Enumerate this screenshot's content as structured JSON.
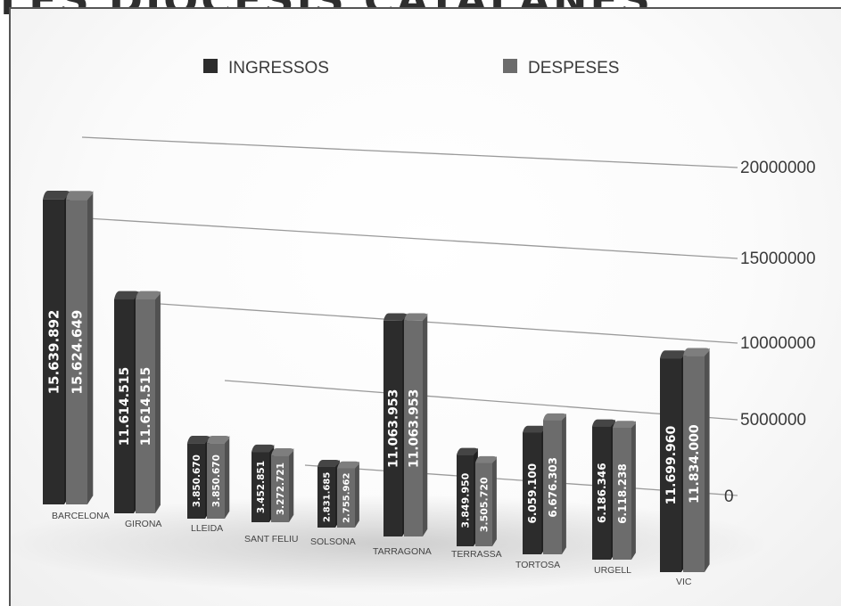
{
  "title": "LES DIÒCESIS CATALANES",
  "chart_data": {
    "type": "bar",
    "title": "",
    "xlabel": "",
    "ylabel": "",
    "categories": [
      "BARCELONA",
      "GIRONA",
      "LLEIDA",
      "SANT FELIU",
      "SOLSONA",
      "TARRAGONA",
      "TERRASSA",
      "TORTOSA",
      "URGELL",
      "VIC"
    ],
    "series": [
      {
        "name": "INGRESSOS",
        "color": "#2c2c2c",
        "values": [
          15639892,
          11614515,
          3850670,
          3452851,
          2831685,
          11063953,
          3849950,
          6059100,
          6186346,
          11699960
        ],
        "labels": [
          "15.639.892",
          "11.614.515",
          "3.850.670",
          "3.452.851",
          "2.831.685",
          "11.063.953",
          "3.849.950",
          "6.059.100",
          "6.186.346",
          "11.699.960"
        ]
      },
      {
        "name": "DESPESES",
        "color": "#6c6c6c",
        "values": [
          15624649,
          11614515,
          3850670,
          3272721,
          2755962,
          11063953,
          3505720,
          6676303,
          6118238,
          11834000
        ],
        "labels": [
          "15.624.649",
          "11.614.515",
          "3.850.670",
          "3.272.721",
          "2.755.962",
          "11.063.953",
          "3.505.720",
          "6.676.303",
          "6.118.238",
          "11.834.000"
        ]
      }
    ],
    "yticks": [
      "0",
      "5000000",
      "10000000",
      "15000000",
      "20000000"
    ],
    "ylim": [
      0,
      20000000
    ],
    "legend_position": "top",
    "grid": true,
    "style": "3d"
  }
}
